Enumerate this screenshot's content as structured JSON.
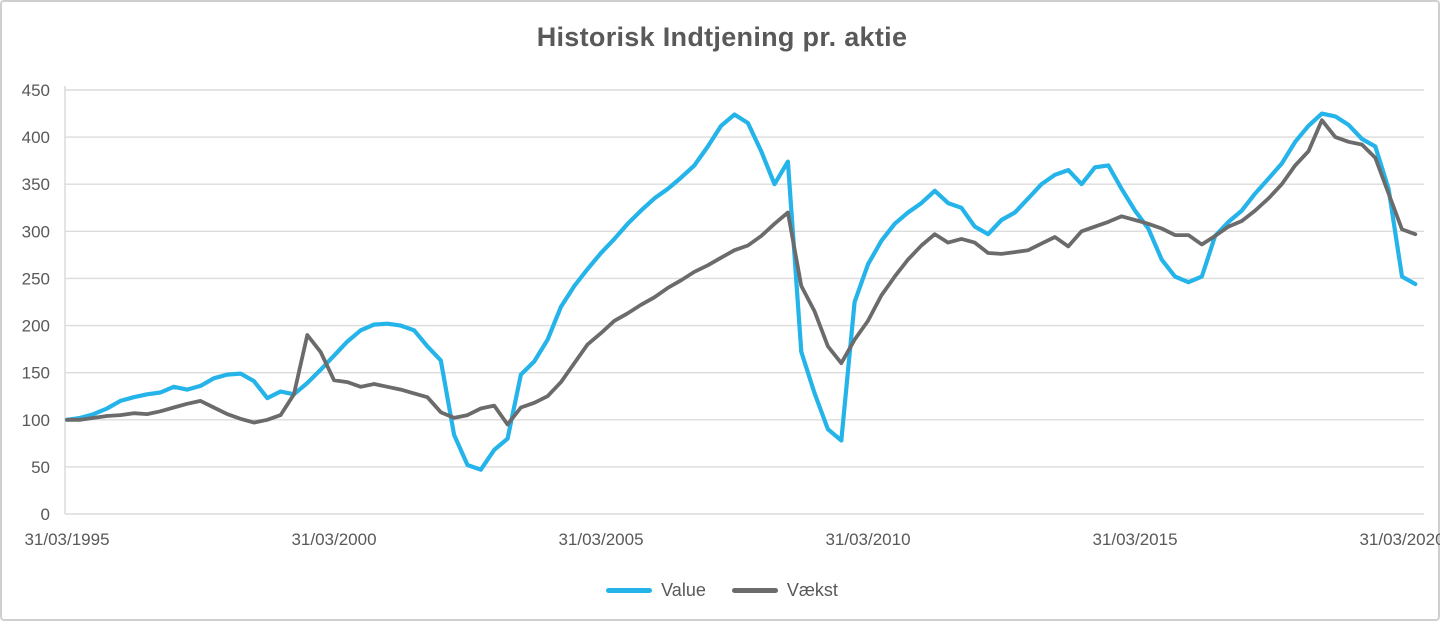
{
  "window": {
    "background_color": "#ffffff",
    "border_color": "#cfcfcf"
  },
  "colors": {
    "title_text": "#595959",
    "axis_label_text": "#595959",
    "gridline": "#dcdcdc",
    "axis_line": "#d9d9d9"
  },
  "chart_data": {
    "type": "line",
    "title": "Historisk Indtjening pr. aktie",
    "xlabel": "",
    "ylabel": "",
    "ylim": [
      0,
      450
    ],
    "y_ticks": [
      0,
      50,
      100,
      150,
      200,
      250,
      300,
      350,
      400,
      450
    ],
    "x_tick_labels": [
      "31/03/1995",
      "31/03/2000",
      "31/03/2005",
      "31/03/2010",
      "31/03/2015",
      "31/03/2020"
    ],
    "x_start": "31/03/1995",
    "x_end": "30/06/2020",
    "x_interval": "quarterly",
    "grid": "horizontal",
    "legend_position": "bottom-center",
    "series": [
      {
        "name": "Value",
        "color": "#25b4e9",
        "values": [
          100,
          102,
          106,
          112,
          120,
          124,
          127,
          129,
          135,
          132,
          136,
          144,
          148,
          149,
          141,
          123,
          130,
          127,
          139,
          153,
          168,
          183,
          195,
          201,
          202,
          200,
          195,
          178,
          163,
          84,
          52,
          47,
          68,
          80,
          148,
          162,
          185,
          220,
          242,
          260,
          277,
          292,
          308,
          322,
          335,
          345,
          357,
          370,
          390,
          412,
          424,
          415,
          385,
          350,
          374,
          172,
          128,
          90,
          78,
          225,
          265,
          290,
          308,
          320,
          330,
          343,
          330,
          325,
          305,
          297,
          312,
          320,
          335,
          350,
          360,
          365,
          350,
          368,
          370,
          345,
          322,
          303,
          270,
          252,
          246,
          252,
          295,
          310,
          322,
          340,
          356,
          372,
          395,
          412,
          425,
          422,
          413,
          398,
          390,
          345,
          252,
          244
        ]
      },
      {
        "name": "Vækst",
        "color": "#6b6b6b",
        "values": [
          100,
          100,
          102,
          104,
          105,
          107,
          106,
          109,
          113,
          117,
          120,
          113,
          106,
          101,
          97,
          100,
          105,
          127,
          190,
          172,
          142,
          140,
          135,
          138,
          135,
          132,
          128,
          124,
          108,
          102,
          105,
          112,
          115,
          95,
          113,
          118,
          125,
          140,
          160,
          180,
          192,
          205,
          213,
          222,
          230,
          240,
          248,
          257,
          264,
          272,
          280,
          285,
          295,
          308,
          320,
          242,
          215,
          178,
          160,
          185,
          205,
          232,
          252,
          270,
          285,
          297,
          288,
          292,
          288,
          277,
          276,
          278,
          280,
          287,
          294,
          284,
          300,
          305,
          310,
          316,
          312,
          308,
          303,
          296,
          296,
          286,
          295,
          305,
          311,
          322,
          335,
          350,
          370,
          385,
          418,
          400,
          395,
          392,
          378,
          340,
          302,
          297
        ]
      }
    ]
  }
}
